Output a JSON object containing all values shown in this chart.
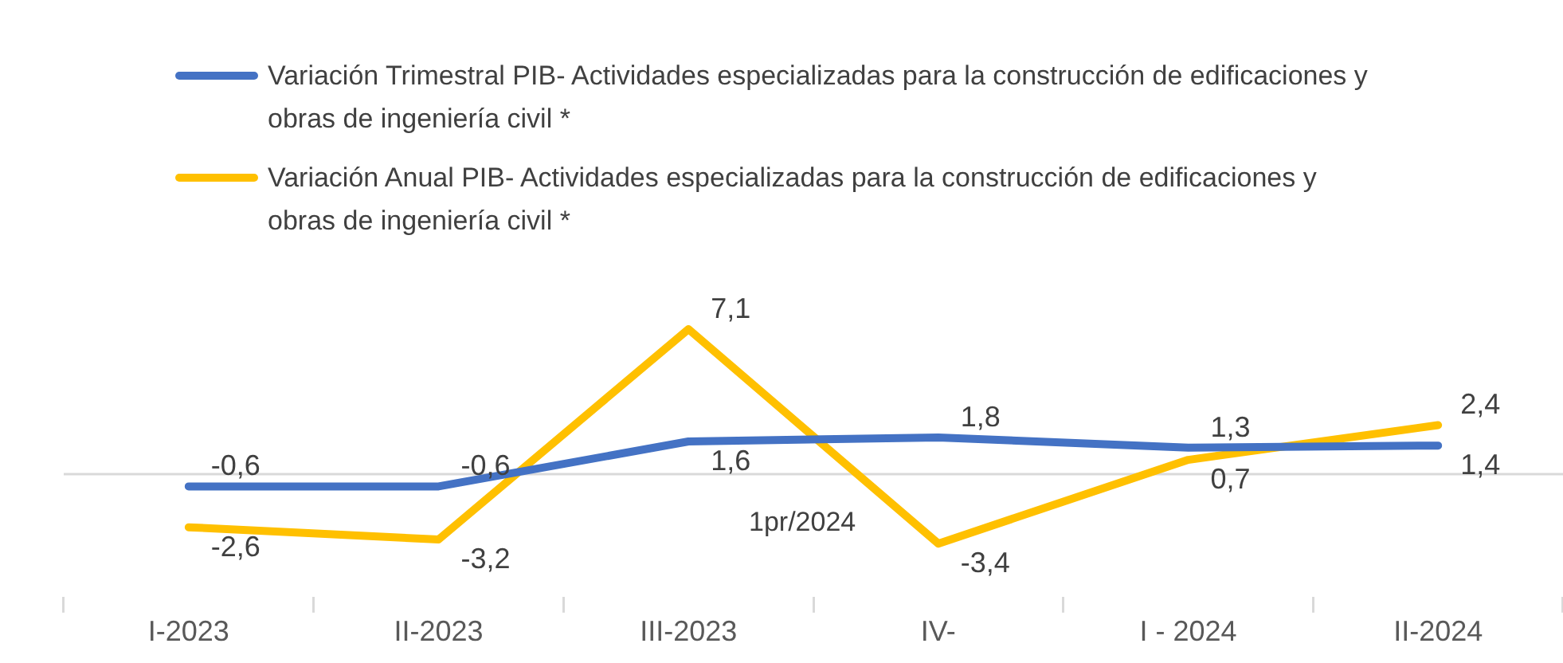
{
  "chart_data": {
    "type": "line",
    "categories": [
      "I-2023",
      "II-2023",
      "III-2023",
      "IV-",
      "I - 2024",
      "II-2024"
    ],
    "series": [
      {
        "name": "Variación Trimestral PIB- Actividades especializadas para la construcción de edificaciones y obras de ingeniería civil *",
        "color": "#4472c4",
        "values": [
          -0.6,
          -0.6,
          1.6,
          1.8,
          1.3,
          1.4
        ],
        "value_labels": [
          "-0,6",
          "-0,6",
          "1,6",
          "1,8",
          "1,3",
          "1,4"
        ]
      },
      {
        "name": "Variación Anual PIB- Actividades especializadas para la construcción de edificaciones y obras de ingeniería civil *",
        "color": "#ffc000",
        "values": [
          -2.6,
          -3.2,
          7.1,
          -3.4,
          0.7,
          2.4
        ],
        "value_labels": [
          "-2,6",
          "-3,2",
          "7,1",
          "-3,4",
          "0,7",
          "2,4"
        ]
      }
    ],
    "ref_lines": [
      {
        "axis": "y",
        "value": 0,
        "color": "#d9d9d9"
      }
    ],
    "legend": "top",
    "marker": "none",
    "line_style": "solid",
    "grid": false,
    "tick_labels": "x",
    "annotations": [
      "1pr/2024"
    ]
  }
}
